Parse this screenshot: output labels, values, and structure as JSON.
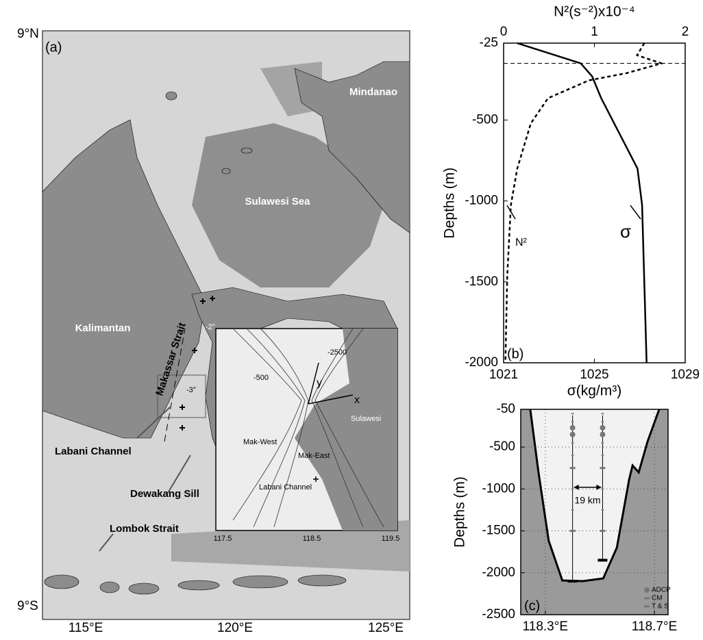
{
  "map": {
    "panel_label": "(a)",
    "lat_labels": [
      "9°N",
      "9°S"
    ],
    "lon_labels": [
      "115°E",
      "120°E",
      "125°E"
    ],
    "place_labels": [
      "Mindanao",
      "Sulawesi Sea",
      "Kalimantan",
      "Makassar Strait",
      "Labani Channel",
      "Dewakang Sill",
      "Lombok Strait"
    ],
    "inset": {
      "labels": [
        "-2500",
        "-500",
        "y",
        "x",
        "Sulawesi",
        "Mak-West",
        "Mak-East",
        "Labani Channel"
      ],
      "lon_labels": [
        "117.5",
        "118.5",
        "119.5"
      ],
      "lat_labels": [
        "-2°",
        "-3°"
      ]
    }
  },
  "chart_data": [
    {
      "type": "line",
      "panel_label": "(b)",
      "xlabel": "σ(kg/m³)",
      "x2label": "N²(s⁻²)x10⁻⁴",
      "ylabel": "Depths (m)",
      "xlim": [
        1021,
        1029
      ],
      "xticks": [
        1021,
        1025,
        1029
      ],
      "x2lim": [
        0,
        2
      ],
      "x2ticks": [
        0,
        1,
        2
      ],
      "ylim": [
        -2000,
        -25
      ],
      "yticks": [
        -25,
        -500,
        -1000,
        -1500,
        -2000
      ],
      "hline": -150,
      "series": [
        {
          "name": "σ",
          "color": "#000000",
          "dash": false,
          "x": [
            1021.6,
            1024.4,
            1024.9,
            1025.3,
            1026.9,
            1027.1,
            1027.3
          ],
          "y": [
            -25,
            -150,
            -230,
            -365,
            -800,
            -1025,
            -2000
          ]
        },
        {
          "name": "N²",
          "color": "#000000",
          "dash": true,
          "axis": "x2",
          "x": [
            1.55,
            1.47,
            1.74,
            1.36,
            0.94,
            0.49,
            0.3,
            0.15,
            0.08,
            0.04,
            0.02
          ],
          "y": [
            -25,
            -100,
            -150,
            -210,
            -255,
            -365,
            -520,
            -800,
            -1025,
            -1465,
            -2000
          ]
        }
      ]
    },
    {
      "type": "line",
      "panel_label": "(c)",
      "ylabel": "Depths (m)",
      "grid": true,
      "xlim": [
        118.21,
        118.75
      ],
      "xticks": [
        {
          "value": 118.3,
          "label": "118.3°E"
        },
        {
          "value": 118.7,
          "label": "118.7°E"
        }
      ],
      "ylim": [
        -2500,
        -50
      ],
      "yticks": [
        -50,
        -500,
        -1000,
        -1500,
        -2000,
        -2500
      ],
      "series": [
        {
          "color": "#000000",
          "x": [
            118.245,
            118.275,
            118.3125,
            118.3625,
            118.4375,
            118.5125,
            118.5625,
            118.6075,
            118.62,
            118.6425,
            118.675,
            118.7175
          ],
          "y": [
            -50,
            -801,
            -1618,
            -2092,
            -2100,
            -2067,
            -1700,
            -883,
            -720,
            -801,
            -434,
            -50
          ]
        }
      ],
      "moorings": [
        {
          "x": 118.4,
          "top": -120,
          "bottom": -2100
        },
        {
          "x": 118.51,
          "top": -120,
          "bottom": -1850
        }
      ],
      "instruments": [
        {
          "name": "ADCP",
          "depths": [
            -270,
            -350
          ]
        },
        {
          "name": "CM",
          "depths": [
            -750,
            -1500
          ]
        },
        {
          "name": "T & S",
          "depths": [
            -100,
            -200,
            -450,
            -600,
            -1000,
            -1250
          ]
        }
      ],
      "annotation": "19 km"
    }
  ]
}
